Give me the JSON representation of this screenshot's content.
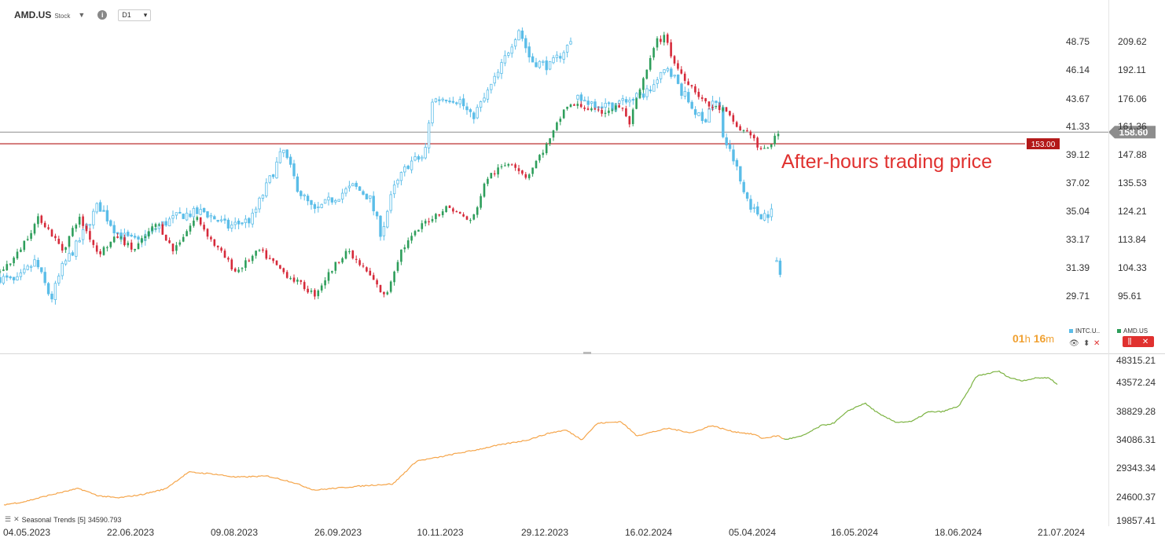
{
  "header": {
    "symbol": "AMD.US",
    "type": "Stock",
    "timeframe": "D1",
    "dropdown_icon": "chevron-down-icon",
    "info_icon": "info-icon"
  },
  "annotation": "After-hours trading price",
  "timer": {
    "hours": "01",
    "h": "h",
    "minutes": "16",
    "m": "m"
  },
  "legend": {
    "intc": {
      "label": "INTC.U..",
      "color": "#5bbde8"
    },
    "amd": {
      "label": "AMD.US",
      "color": "#2e9e5b"
    }
  },
  "indicator": {
    "name": "Seasonal",
    "label": "Trends",
    "params": "[5]",
    "value": "34590.793"
  },
  "colors": {
    "up": "#2e9e5b",
    "down": "#d62a3a",
    "intc": "#5bbde8",
    "seasonal_past": "#f5a54a",
    "seasonal_future": "#7cb342",
    "level": "#b31818",
    "current": "#8d8d8d"
  },
  "chart_data": [
    {
      "type": "candlestick",
      "series": [
        {
          "name": "AMD.US",
          "axis": "right",
          "color_up": "#2e9e5b",
          "color_down": "#d62a3a",
          "anchors": [
            [
              0,
              103
            ],
            [
              20,
              108
            ],
            [
              50,
              122
            ],
            [
              80,
              110
            ],
            [
              100,
              122
            ],
            [
              125,
              109
            ],
            [
              150,
              115
            ],
            [
              170,
              110
            ],
            [
              200,
              120
            ],
            [
              220,
              110
            ],
            [
              250,
              122
            ],
            [
              270,
              113
            ],
            [
              300,
              103
            ],
            [
              330,
              110
            ],
            [
              360,
              103
            ],
            [
              400,
              96
            ],
            [
              440,
              110
            ],
            [
              470,
              102
            ],
            [
              490,
              95
            ],
            [
              510,
              110
            ],
            [
              540,
              120
            ],
            [
              570,
              126
            ],
            [
              600,
              120
            ],
            [
              620,
              138
            ],
            [
              650,
              145
            ],
            [
              670,
              138
            ],
            [
              700,
              155
            ],
            [
              720,
              172
            ],
            [
              740,
              172
            ],
            [
              760,
              168
            ],
            [
              790,
              172
            ],
            [
              800,
              162
            ],
            [
              810,
              175
            ],
            [
              825,
              195
            ],
            [
              835,
              210
            ],
            [
              848,
              213
            ],
            [
              855,
              198
            ],
            [
              870,
              188
            ],
            [
              885,
              180
            ],
            [
              900,
              172
            ],
            [
              920,
              170
            ],
            [
              940,
              160
            ],
            [
              955,
              158
            ],
            [
              967,
              149
            ],
            [
              978,
              152
            ],
            [
              993,
              159
            ]
          ]
        },
        {
          "name": "INTC.U..",
          "axis": "left",
          "color": "#5bbde8",
          "anchors": [
            [
              0,
              30.8
            ],
            [
              20,
              30.5
            ],
            [
              45,
              31.8
            ],
            [
              65,
              29.5
            ],
            [
              80,
              31.5
            ],
            [
              100,
              33
            ],
            [
              125,
              35.5
            ],
            [
              150,
              33.5
            ],
            [
              175,
              33.0
            ],
            [
              200,
              34.0
            ],
            [
              230,
              34.8
            ],
            [
              260,
              35.0
            ],
            [
              290,
              34.0
            ],
            [
              320,
              34.5
            ],
            [
              345,
              37.5
            ],
            [
              360,
              39.5
            ],
            [
              380,
              36.5
            ],
            [
              400,
              35.0
            ],
            [
              420,
              35.8
            ],
            [
              450,
              36.8
            ],
            [
              470,
              36.0
            ],
            [
              485,
              33.5
            ],
            [
              500,
              36.5
            ],
            [
              520,
              38.5
            ],
            [
              540,
              39.0
            ],
            [
              550,
              43.5
            ],
            [
              570,
              43.8
            ],
            [
              585,
              43.5
            ],
            [
              600,
              42.0
            ],
            [
              615,
              43.5
            ],
            [
              635,
              46.0
            ],
            [
              650,
              48.5
            ],
            [
              660,
              50.0
            ],
            [
              675,
              47.0
            ],
            [
              700,
              46.5
            ],
            [
              730,
              49.0
            ]
          ]
        },
        {
          "name": "INTC.U.. (after gap)",
          "axis": "left",
          "color": "#5bbde8",
          "anchors": [
            [
              735,
              43.6
            ],
            [
              755,
              43.3
            ],
            [
              775,
              43.0
            ],
            [
              795,
              43.5
            ],
            [
              815,
              43.8
            ],
            [
              835,
              45.0
            ],
            [
              850,
              46.5
            ],
            [
              865,
              44.5
            ],
            [
              880,
              43.0
            ],
            [
              895,
              41.5
            ],
            [
              905,
              43.5
            ],
            [
              915,
              43.0
            ],
            [
              920,
              40.5
            ],
            [
              935,
              38.5
            ],
            [
              945,
              36.5
            ],
            [
              960,
              35.0
            ],
            [
              970,
              34.8
            ],
            [
              982,
              35.0
            ]
          ]
        },
        {
          "name": "INTC.U.. (latest)",
          "axis": "left",
          "color": "#5bbde8",
          "anchors": [
            [
              988,
              31.8
            ],
            [
              990,
              31.3
            ],
            [
              994,
              30.8
            ]
          ]
        }
      ]
    },
    {
      "type": "line",
      "series": [
        {
          "name": "Seasonal Trends [5]",
          "color_past": "#f5a54a",
          "color_future": "#7cb342",
          "anchors": [
            [
              5,
              22700
            ],
            [
              30,
              23200
            ],
            [
              60,
              24300
            ],
            [
              100,
              25600
            ],
            [
              125,
              24300
            ],
            [
              150,
              23900
            ],
            [
              180,
              24500
            ],
            [
              210,
              25500
            ],
            [
              240,
              28500
            ],
            [
              270,
              28200
            ],
            [
              300,
              27600
            ],
            [
              340,
              27800
            ],
            [
              370,
              26800
            ],
            [
              400,
              25300
            ],
            [
              440,
              25800
            ],
            [
              475,
              26200
            ],
            [
              500,
              26400
            ],
            [
              530,
              30500
            ],
            [
              560,
              31200
            ],
            [
              580,
              31800
            ],
            [
              600,
              32300
            ],
            [
              630,
              33200
            ],
            [
              670,
              34200
            ],
            [
              700,
              35500
            ],
            [
              720,
              36000
            ],
            [
              740,
              34300
            ],
            [
              760,
              37200
            ],
            [
              790,
              37500
            ],
            [
              810,
              35000
            ],
            [
              850,
              36300
            ],
            [
              880,
              35500
            ],
            [
              905,
              36800
            ],
            [
              930,
              35800
            ],
            [
              960,
              35200
            ],
            [
              970,
              34500
            ],
            [
              990,
              35000
            ],
            [
              998,
              34300
            ],
            [
              1020,
              34900
            ],
            [
              1045,
              36800
            ],
            [
              1060,
              37200
            ],
            [
              1080,
              39500
            ],
            [
              1100,
              40800
            ],
            [
              1120,
              38700
            ],
            [
              1140,
              37400
            ],
            [
              1160,
              37500
            ],
            [
              1180,
              39200
            ],
            [
              1200,
              39300
            ],
            [
              1220,
              40300
            ],
            [
              1232,
              43000
            ],
            [
              1242,
              45600
            ],
            [
              1258,
              46100
            ],
            [
              1270,
              46500
            ],
            [
              1285,
              45300
            ],
            [
              1300,
              44800
            ],
            [
              1320,
              45300
            ],
            [
              1335,
              45300
            ],
            [
              1345,
              44100
            ]
          ]
        }
      ],
      "y_min": 19857.0,
      "y_max": 48400.0
    }
  ],
  "axes": {
    "x_ticks": [
      "04.05.2023",
      "22.06.2023",
      "09.08.2023",
      "26.09.2023",
      "10.11.2023",
      "29.12.2023",
      "16.02.2024",
      "05.04.2024",
      "16.05.2024",
      "18.06.2024",
      "21.07.2024"
    ],
    "left_ticks": [
      48.75,
      46.14,
      43.67,
      41.33,
      39.12,
      37.02,
      35.04,
      33.17,
      31.39,
      29.71
    ],
    "left_labels": [
      "48.75",
      "46.14",
      "43.67",
      "41.33",
      "39.12",
      "37.02",
      "35.04",
      "33.17",
      "31.39",
      "29.71"
    ],
    "right_ticks": [
      209.62,
      192.11,
      176.06,
      161.36,
      147.88,
      135.53,
      124.21,
      113.84,
      104.33,
      95.61
    ],
    "right_labels": [
      "209.62",
      "192.11",
      "176.06",
      "161.36",
      "147.88",
      "135.53",
      "124.21",
      "113.84",
      "104.33",
      "95.61"
    ],
    "lower_ticks": [
      48315.21,
      43572.24,
      38829.28,
      34086.31,
      29343.34,
      24600.37,
      19857.41
    ],
    "lower_labels": [
      "48315.21",
      "43572.24",
      "38829.28",
      "34086.31",
      "29343.34",
      "24600.37",
      "19857.41"
    ]
  },
  "levels": {
    "support": {
      "value": 153.0,
      "label": "153.00"
    },
    "current": {
      "value": 158.6,
      "label": "158.60"
    }
  }
}
